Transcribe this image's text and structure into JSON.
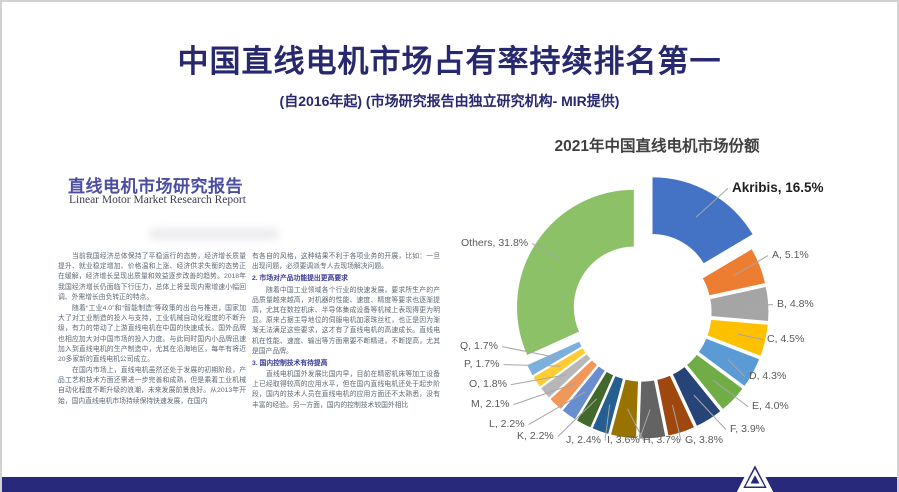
{
  "slide": {
    "title": "中国直线电机市场占有率持续排名第一",
    "subtitle": "(自2016年起) (市场研究报告由独立研究机构- MIR提供)",
    "accent_navy": "#28286E"
  },
  "document": {
    "title": "直线电机市场研究报告",
    "subtitle_en": "Linear Motor Market Research Report",
    "col1": [
      {
        "style": "p",
        "text": "当前我国经济总体保持了平稳运行的态势，经济增长质量提升、就业稳定增加、价格温和上涨、经济供求失衡的态势正在缓解，经济增长呈现出质量和效益逐步改善的趋势。2018年我国经济增长仍面临下行压力，总体上将呈现内需增速小幅回调、外需增长由负转正的特点。"
      },
      {
        "style": "p",
        "text": "随着“工业4.0”和“智能制造”等政策的出台与推进，国家加大了对工业制造的投入与支持，工业机械自动化程度的不断升级，有力的带动了上游直线电机在中国的快速成长。国外品牌也相应加大对中国市场的投入力度。与此同时国内小品牌迅速加入到直线电机的生产制造中，尤其在沿海地区，每年有将近20多家新的直线电机公司成立。"
      },
      {
        "style": "p",
        "text": "在国内市场上，直线电机虽然还处于发展的初期阶段，产品工艺和技术方面还需进一步完善和成熟，但是乘着工业机械自动化程度不断升级的浪潮，未来发展前景良好。从2013年开始，国内直线电机市场持续保持快速发展，在国内"
      }
    ],
    "col2": [
      {
        "style": "p-cont",
        "text": "有各自的风格，这种结果不利于各项业务的开展，比如：一旦出现问题，必须要调派专人去现场解决问题。"
      },
      {
        "style": "h",
        "text": "2. 市场对产品功能提出更高要求"
      },
      {
        "style": "p",
        "text": "随着中国工业领域各个行业的快速发展，要求所生产的产品质量越来越高，对机器的性能、速度、精度等要求也逐渐提高，尤其在数控机床、半导体集成设备等机械上表现得更为明显。原来占据主导地位的伺服电机加滚珠丝杠，也正是因为渐渐无法满足这些要求，这才有了直线电机的高速成长。直线电机在性能、速度、输出等方面需要不断精进，不断提高，尤其是国产品牌。"
      },
      {
        "style": "h",
        "text": "3. 国内控制技术有待提高"
      },
      {
        "style": "p",
        "text": "直线电机国外发展比国内早，目前在精密机床等加工设备上已经取得较高的应用水平，但在国内直线电机还处于起步阶段，国内的技术人员在直线电机的应用方面还不太熟悉，没有丰富的经验。另一方面，国内的控制技术较国外相比"
      }
    ]
  },
  "chart_data": {
    "type": "pie",
    "subtype": "doughnut-exploded",
    "title": "2021年中国直线电机市场份额",
    "direction": "clockwise",
    "start_angle_deg": 0,
    "hole_ratio": 0.51,
    "legend": "none",
    "labels_position": "outside-with-leader-lines",
    "highlighted_slice": "Akribis",
    "slices": [
      {
        "label": "Akribis",
        "value": 16.5,
        "color": "#4472C4"
      },
      {
        "label": "A",
        "value": 5.1,
        "color": "#ED7D31"
      },
      {
        "label": "B",
        "value": 4.8,
        "color": "#A5A5A5"
      },
      {
        "label": "C",
        "value": 4.5,
        "color": "#FFC000"
      },
      {
        "label": "D",
        "value": 4.3,
        "color": "#5B9BD5"
      },
      {
        "label": "E",
        "value": 4.0,
        "color": "#70AD47"
      },
      {
        "label": "F",
        "value": 3.9,
        "color": "#264478"
      },
      {
        "label": "G",
        "value": 3.8,
        "color": "#9E480E"
      },
      {
        "label": "H",
        "value": 3.7,
        "color": "#636363"
      },
      {
        "label": "I",
        "value": 3.6,
        "color": "#997300"
      },
      {
        "label": "J",
        "value": 2.4,
        "color": "#255E91"
      },
      {
        "label": "K",
        "value": 2.2,
        "color": "#43682B"
      },
      {
        "label": "L",
        "value": 2.2,
        "color": "#698ED0"
      },
      {
        "label": "M",
        "value": 2.1,
        "color": "#F1975A"
      },
      {
        "label": "O",
        "value": 1.8,
        "color": "#B7B7B7"
      },
      {
        "label": "P",
        "value": 1.7,
        "color": "#FFCD33"
      },
      {
        "label": "Q",
        "value": 1.7,
        "color": "#7CAFDD"
      },
      {
        "label": "Others",
        "value": 31.8,
        "color": "#8CC168"
      }
    ]
  },
  "footer": {
    "bar_color": "#29297B",
    "logo": "akribis-triangle-logo"
  }
}
